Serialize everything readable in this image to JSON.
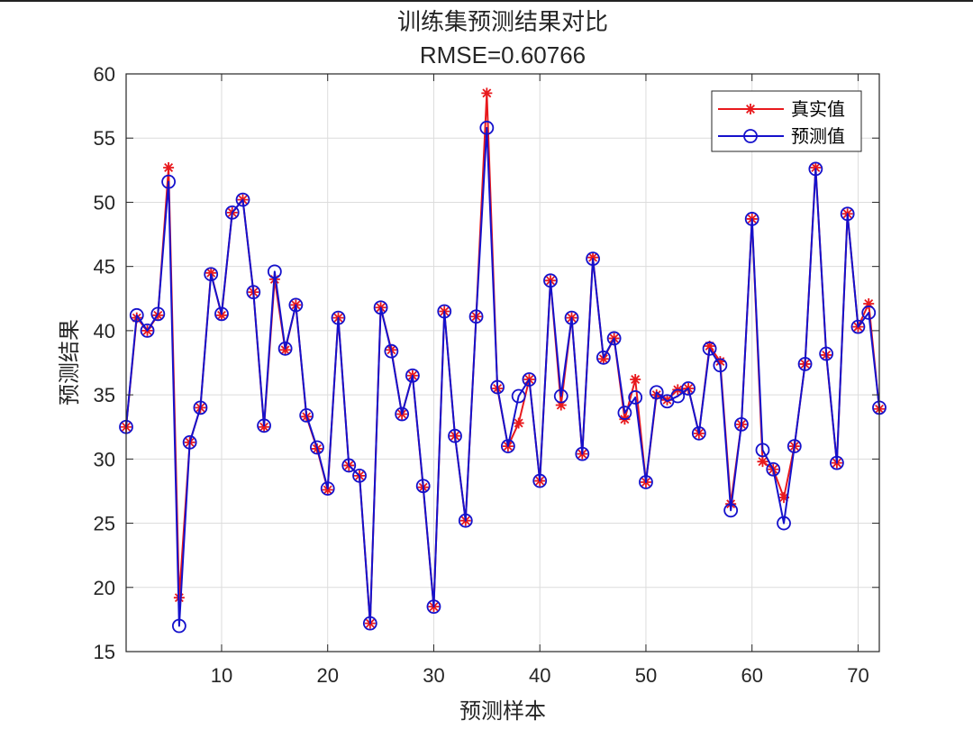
{
  "chart_data": {
    "type": "line",
    "title": "训练集预测结果对比",
    "subtitle": "RMSE=0.60766",
    "xlabel": "预测样本",
    "ylabel": "预测结果",
    "xlim": [
      1,
      72
    ],
    "ylim": [
      15,
      60
    ],
    "xticks": [
      10,
      20,
      30,
      40,
      50,
      60,
      70
    ],
    "yticks": [
      15,
      20,
      25,
      30,
      35,
      40,
      45,
      50,
      55,
      60
    ],
    "grid": true,
    "legend_position": "top-right",
    "x": [
      1,
      2,
      3,
      4,
      5,
      6,
      7,
      8,
      9,
      10,
      11,
      12,
      13,
      14,
      15,
      16,
      17,
      18,
      19,
      20,
      21,
      22,
      23,
      24,
      25,
      26,
      27,
      28,
      29,
      30,
      31,
      32,
      33,
      34,
      35,
      36,
      37,
      38,
      39,
      40,
      41,
      42,
      43,
      44,
      45,
      46,
      47,
      48,
      49,
      50,
      51,
      52,
      53,
      54,
      55,
      56,
      57,
      58,
      59,
      60,
      61,
      62,
      63,
      64,
      65,
      66,
      67,
      68,
      69,
      70,
      71,
      72
    ],
    "series": [
      {
        "name": "真实值",
        "color": "#e8191d",
        "marker": "asterisk",
        "values": [
          32.5,
          41.0,
          40.0,
          41.2,
          52.7,
          19.2,
          31.3,
          34.0,
          44.5,
          41.2,
          49.2,
          50.2,
          43.0,
          32.5,
          44.0,
          38.5,
          42.0,
          33.3,
          30.8,
          27.6,
          41.0,
          29.5,
          28.7,
          17.2,
          41.8,
          38.5,
          33.5,
          36.5,
          27.8,
          18.5,
          41.5,
          31.8,
          25.2,
          41.1,
          58.5,
          35.5,
          31.0,
          32.8,
          36.2,
          28.3,
          43.9,
          34.2,
          41.0,
          30.4,
          45.7,
          37.8,
          39.4,
          33.1,
          36.2,
          28.2,
          35.0,
          34.6,
          35.4,
          35.5,
          32.0,
          38.8,
          37.6,
          26.5,
          32.7,
          48.7,
          29.8,
          29.2,
          27.0,
          31.0,
          37.4,
          52.7,
          38.1,
          29.7,
          49.1,
          40.3,
          42.1,
          33.9
        ]
      },
      {
        "name": "预测值",
        "color": "#1511cc",
        "marker": "circle",
        "values": [
          32.5,
          41.2,
          40.0,
          41.3,
          51.6,
          17.0,
          31.3,
          34.0,
          44.4,
          41.3,
          49.2,
          50.2,
          43.0,
          32.6,
          44.6,
          38.6,
          42.0,
          33.4,
          30.9,
          27.7,
          41.0,
          29.5,
          28.7,
          17.2,
          41.8,
          38.4,
          33.5,
          36.5,
          27.9,
          18.5,
          41.5,
          31.8,
          25.2,
          41.1,
          55.8,
          35.6,
          31.0,
          34.9,
          36.2,
          28.3,
          43.9,
          34.9,
          41.0,
          30.4,
          45.6,
          37.9,
          39.4,
          33.6,
          34.8,
          28.2,
          35.2,
          34.5,
          34.9,
          35.5,
          32.0,
          38.6,
          37.3,
          26.0,
          32.7,
          48.7,
          30.7,
          29.2,
          25.0,
          31.0,
          37.4,
          52.6,
          38.2,
          29.7,
          49.1,
          40.3,
          41.4,
          34.0
        ]
      }
    ]
  }
}
